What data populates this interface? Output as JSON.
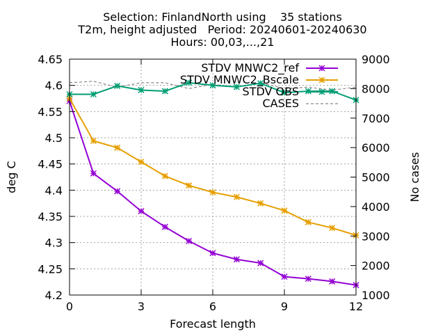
{
  "chart_data": {
    "type": "line",
    "title": [
      "Selection: FinlandNorth using    35 stations",
      "T2m, height adjusted   Period: 20240601-20240630",
      "Hours: 00,03,...,21"
    ],
    "xlabel": "Forecast length",
    "ylabel": "deg C",
    "y2label": "No cases",
    "xlim": [
      0,
      12
    ],
    "ylim": [
      4.2,
      4.65
    ],
    "y2lim": [
      1000,
      9000
    ],
    "xticks": [
      "0",
      "3",
      "6",
      "9",
      "12"
    ],
    "yticks": [
      "4.2",
      "4.25",
      "4.3",
      "4.35",
      "4.4",
      "4.45",
      "4.5",
      "4.55",
      "4.6",
      "4.65"
    ],
    "y2ticks": [
      "1000",
      "2000",
      "3000",
      "4000",
      "5000",
      "6000",
      "7000",
      "8000",
      "9000"
    ],
    "grid": true,
    "legend_position": "top-right",
    "x": [
      0,
      1,
      2,
      3,
      4,
      5,
      6,
      7,
      8,
      9,
      10,
      11,
      12
    ],
    "series": [
      {
        "name": "STDV MNWC2_ref",
        "color": "#9400d3",
        "axis": "y",
        "values": [
          4.57,
          4.432,
          4.398,
          4.36,
          4.33,
          4.303,
          4.28,
          4.268,
          4.261,
          4.235,
          4.231,
          4.226,
          4.219
        ]
      },
      {
        "name": "STDV MNWC2_Bscale",
        "color": "#e69f00",
        "axis": "y",
        "values": [
          4.575,
          4.494,
          4.481,
          4.454,
          4.427,
          4.409,
          4.396,
          4.387,
          4.375,
          4.361,
          4.339,
          4.328,
          4.314
        ]
      },
      {
        "name": "STDV OBS",
        "color": "#009e73",
        "axis": "y",
        "values": [
          4.583,
          4.583,
          4.599,
          4.591,
          4.589,
          4.605,
          4.6,
          4.597,
          4.604,
          4.586,
          4.589,
          4.589,
          4.572
        ]
      },
      {
        "name": "CASES",
        "color": "#888888",
        "axis": "y2",
        "dashed": true,
        "values": [
          8200,
          8250,
          8050,
          8200,
          8200,
          8000,
          8150,
          8050,
          8200,
          8000,
          8050,
          7950,
          8050
        ]
      }
    ]
  }
}
